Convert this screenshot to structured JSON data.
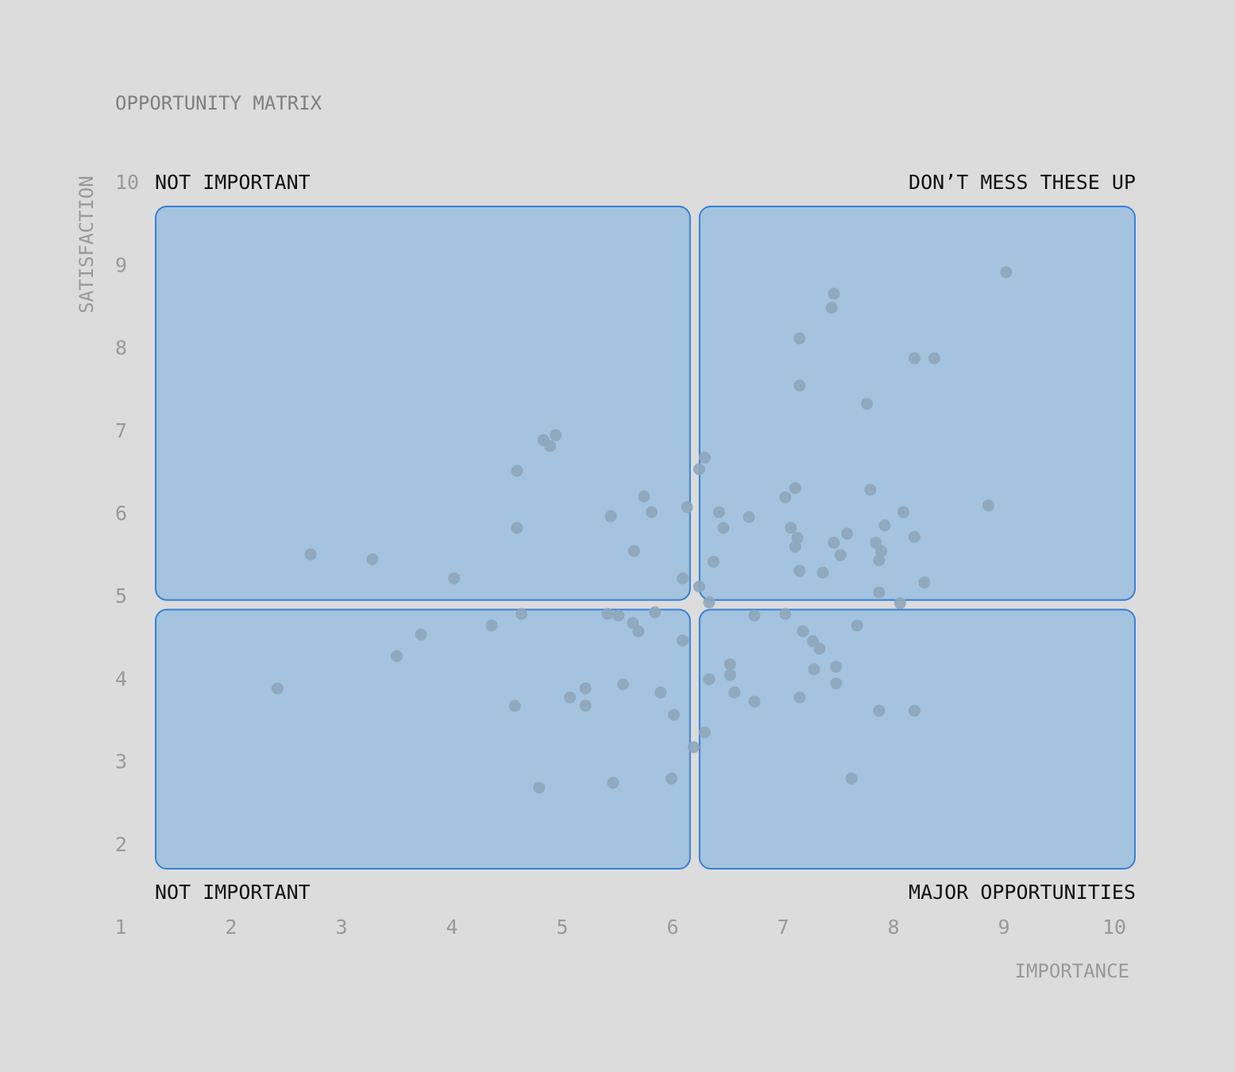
{
  "chart_data": {
    "type": "scatter",
    "title": "OPPORTUNITY MATRIX",
    "xlabel": "IMPORTANCE",
    "ylabel": "SATISFACTION",
    "xlim": [
      1,
      10
    ],
    "ylim": [
      1,
      10
    ],
    "x_ticks": [
      "1",
      "2",
      "3",
      "4",
      "5",
      "6",
      "7",
      "8",
      "9",
      "10"
    ],
    "y_ticks": [
      "2",
      "3",
      "4",
      "5",
      "6",
      "7",
      "8",
      "9",
      "10"
    ],
    "quadrant_split": {
      "x": 6.2,
      "y": 4.9
    },
    "quadrant_labels": {
      "top_left": "NOT IMPORTANT",
      "top_right": "DON’T MESS THESE UP",
      "bottom_left": "NOT IMPORTANT",
      "bottom_right": "MAJOR OPPORTUNITIES"
    },
    "colors": {
      "background": "#dcdcdc",
      "quadrant_fill": "#a3c3de",
      "quadrant_stroke": "#3a80d4",
      "point": "#8ea6bb",
      "axis_text": "#999999",
      "title_text": "#808080",
      "label_text": "#111111"
    },
    "points": [
      [
        2.42,
        3.88
      ],
      [
        2.72,
        5.5
      ],
      [
        3.28,
        5.44
      ],
      [
        3.5,
        4.27
      ],
      [
        3.72,
        4.53
      ],
      [
        4.02,
        5.21
      ],
      [
        4.36,
        4.64
      ],
      [
        4.57,
        3.67
      ],
      [
        4.59,
        5.82
      ],
      [
        4.59,
        6.51
      ],
      [
        4.63,
        4.78
      ],
      [
        4.79,
        2.68
      ],
      [
        4.83,
        6.88
      ],
      [
        4.89,
        6.81
      ],
      [
        4.94,
        6.94
      ],
      [
        5.07,
        3.77
      ],
      [
        5.21,
        3.88
      ],
      [
        5.21,
        3.67
      ],
      [
        5.41,
        4.78
      ],
      [
        5.44,
        5.96
      ],
      [
        5.46,
        2.74
      ],
      [
        5.51,
        4.76
      ],
      [
        5.55,
        3.93
      ],
      [
        5.64,
        4.67
      ],
      [
        5.65,
        5.54
      ],
      [
        5.69,
        4.57
      ],
      [
        5.74,
        6.2
      ],
      [
        5.81,
        6.01
      ],
      [
        5.84,
        4.8
      ],
      [
        5.89,
        3.83
      ],
      [
        5.99,
        2.79
      ],
      [
        6.01,
        3.56
      ],
      [
        6.09,
        5.21
      ],
      [
        6.09,
        4.46
      ],
      [
        6.13,
        6.07
      ],
      [
        6.19,
        3.17
      ],
      [
        6.24,
        6.53
      ],
      [
        6.24,
        5.11
      ],
      [
        6.29,
        6.67
      ],
      [
        6.29,
        3.35
      ],
      [
        6.33,
        4.92
      ],
      [
        6.33,
        3.99
      ],
      [
        6.37,
        5.41
      ],
      [
        6.42,
        6.01
      ],
      [
        6.46,
        5.82
      ],
      [
        6.52,
        4.17
      ],
      [
        6.52,
        4.04
      ],
      [
        6.56,
        3.83
      ],
      [
        6.69,
        5.95
      ],
      [
        6.74,
        4.76
      ],
      [
        6.74,
        3.72
      ],
      [
        7.02,
        6.19
      ],
      [
        7.02,
        4.78
      ],
      [
        7.07,
        5.82
      ],
      [
        7.11,
        6.3
      ],
      [
        7.11,
        5.59
      ],
      [
        7.13,
        5.7
      ],
      [
        7.15,
        8.11
      ],
      [
        7.15,
        7.54
      ],
      [
        7.15,
        5.3
      ],
      [
        7.15,
        3.77
      ],
      [
        7.18,
        4.57
      ],
      [
        7.27,
        4.45
      ],
      [
        7.28,
        4.11
      ],
      [
        7.33,
        4.36
      ],
      [
        7.36,
        5.28
      ],
      [
        7.44,
        8.48
      ],
      [
        7.46,
        8.65
      ],
      [
        7.46,
        5.64
      ],
      [
        7.48,
        4.14
      ],
      [
        7.48,
        3.94
      ],
      [
        7.52,
        5.49
      ],
      [
        7.58,
        5.75
      ],
      [
        7.62,
        2.79
      ],
      [
        7.67,
        4.64
      ],
      [
        7.76,
        7.32
      ],
      [
        7.79,
        6.28
      ],
      [
        7.84,
        5.64
      ],
      [
        7.87,
        5.43
      ],
      [
        7.87,
        5.04
      ],
      [
        7.87,
        3.61
      ],
      [
        7.89,
        5.54
      ],
      [
        7.92,
        5.85
      ],
      [
        8.06,
        4.91
      ],
      [
        8.09,
        6.01
      ],
      [
        8.19,
        7.87
      ],
      [
        8.19,
        5.71
      ],
      [
        8.19,
        3.61
      ],
      [
        8.28,
        5.16
      ],
      [
        8.37,
        7.87
      ],
      [
        8.86,
        6.09
      ],
      [
        9.02,
        8.91
      ]
    ]
  }
}
